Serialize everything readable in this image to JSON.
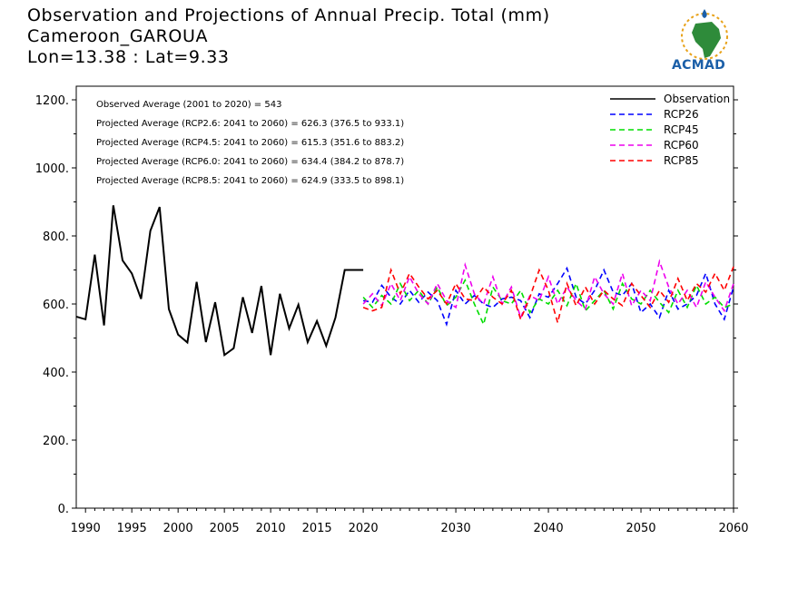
{
  "title": {
    "line1": "Observation and Projections of Annual Precip. Total (mm)",
    "line2": "Cameroon_GAROUA",
    "line3": "Lon=13.38 : Lat=9.33"
  },
  "logo": {
    "text": "ACMAD"
  },
  "colors": {
    "Observation": "#000000",
    "RCP26": "#0000ff",
    "RCP45": "#00dd00",
    "RCP60": "#ee00ee",
    "RCP85": "#ff0000"
  },
  "chart_data": {
    "type": "line",
    "title": "Observation and Projections of Annual Precip. Total (mm)",
    "xlim": [
      1989,
      2060
    ],
    "ylim": [
      0,
      1240
    ],
    "x_ticks": [
      1990,
      1995,
      2000,
      2005,
      2010,
      2015,
      2020,
      2030,
      2040,
      2050,
      2060
    ],
    "x_tick_labels": [
      "1990",
      "1995",
      "2000",
      "2005",
      "2010",
      "2015",
      "2020",
      "2030",
      "2040",
      "2050",
      "2060"
    ],
    "y_ticks": [
      0,
      200,
      400,
      600,
      800,
      1000,
      1200
    ],
    "y_tick_labels": [
      "0.",
      "200.",
      "400.",
      "600.",
      "800.",
      "1000.",
      "1200."
    ],
    "legend_position": "top-right",
    "annotations": [
      "Observed Average (2001 to 2020) = 543",
      "Projected Average (RCP2.6: 2041 to 2060) =  626.3 (376.5 to 933.1)",
      "Projected Average (RCP4.5: 2041 to 2060) =  615.3 (351.6 to 883.2)",
      "Projected Average (RCP6.0: 2041 to 2060) =  634.4 (384.2 to 878.7)",
      "Projected Average (RCP8.5: 2041 to 2060) =  624.9 (333.5 to 898.1)"
    ],
    "series": [
      {
        "name": "Observation",
        "style": "solid",
        "x": [
          1989,
          1990,
          1991,
          1992,
          1993,
          1994,
          1995,
          1996,
          1997,
          1998,
          1999,
          2000,
          2001,
          2002,
          2003,
          2004,
          2005,
          2006,
          2007,
          2008,
          2009,
          2010,
          2011,
          2012,
          2013,
          2014,
          2015,
          2016,
          2017,
          2018,
          2019,
          2020
        ],
        "values": [
          563,
          555,
          745,
          537,
          890,
          728,
          690,
          615,
          815,
          885,
          585,
          510,
          487,
          665,
          488,
          605,
          450,
          470,
          620,
          515,
          653,
          450,
          630,
          528,
          598,
          488,
          550,
          477,
          560,
          700,
          700,
          700
        ]
      },
      {
        "name": "RCP26",
        "style": "dashed",
        "x": [
          2020,
          2021,
          2022,
          2023,
          2024,
          2025,
          2026,
          2027,
          2028,
          2029,
          2030,
          2031,
          2032,
          2033,
          2034,
          2035,
          2036,
          2037,
          2038,
          2039,
          2040,
          2041,
          2042,
          2043,
          2044,
          2045,
          2046,
          2047,
          2048,
          2049,
          2050,
          2051,
          2052,
          2053,
          2054,
          2055,
          2056,
          2057,
          2058,
          2059,
          2060
        ],
        "values": [
          610,
          605,
          655,
          620,
          600,
          640,
          605,
          635,
          610,
          540,
          640,
          600,
          625,
          600,
          590,
          615,
          620,
          610,
          560,
          630,
          620,
          660,
          705,
          620,
          600,
          640,
          700,
          635,
          625,
          660,
          575,
          600,
          560,
          640,
          585,
          600,
          625,
          690,
          600,
          555,
          650
        ]
      },
      {
        "name": "RCP45",
        "style": "dashed",
        "x": [
          2020,
          2021,
          2022,
          2023,
          2024,
          2025,
          2026,
          2027,
          2028,
          2029,
          2030,
          2031,
          2032,
          2033,
          2034,
          2035,
          2036,
          2037,
          2038,
          2039,
          2040,
          2041,
          2042,
          2043,
          2044,
          2045,
          2046,
          2047,
          2048,
          2049,
          2050,
          2051,
          2052,
          2053,
          2054,
          2055,
          2056,
          2057,
          2058,
          2059,
          2060
        ],
        "values": [
          620,
          590,
          625,
          600,
          660,
          610,
          640,
          600,
          650,
          595,
          620,
          670,
          600,
          540,
          650,
          610,
          600,
          640,
          575,
          615,
          600,
          640,
          595,
          660,
          580,
          610,
          640,
          585,
          660,
          615,
          600,
          640,
          605,
          575,
          640,
          590,
          655,
          600,
          620,
          590,
          600
        ]
      },
      {
        "name": "RCP60",
        "style": "dashed",
        "x": [
          2020,
          2021,
          2022,
          2023,
          2024,
          2025,
          2026,
          2027,
          2028,
          2029,
          2030,
          2031,
          2032,
          2033,
          2034,
          2035,
          2036,
          2037,
          2038,
          2039,
          2040,
          2041,
          2042,
          2043,
          2044,
          2045,
          2046,
          2047,
          2048,
          2049,
          2050,
          2051,
          2052,
          2053,
          2054,
          2055,
          2056,
          2057,
          2058,
          2059,
          2060
        ],
        "values": [
          600,
          630,
          595,
          660,
          610,
          680,
          630,
          600,
          660,
          610,
          590,
          715,
          630,
          600,
          680,
          600,
          650,
          560,
          625,
          610,
          680,
          600,
          650,
          610,
          585,
          680,
          630,
          600,
          690,
          595,
          640,
          610,
          725,
          650,
          600,
          640,
          590,
          665,
          620,
          580,
          660
        ]
      },
      {
        "name": "RCP85",
        "style": "dashed",
        "x": [
          2020,
          2021,
          2022,
          2023,
          2024,
          2025,
          2026,
          2027,
          2028,
          2029,
          2030,
          2031,
          2032,
          2033,
          2034,
          2035,
          2036,
          2037,
          2038,
          2039,
          2040,
          2041,
          2042,
          2043,
          2044,
          2045,
          2046,
          2047,
          2048,
          2049,
          2050,
          2051,
          2052,
          2053,
          2054,
          2055,
          2056,
          2057,
          2058,
          2059,
          2060
        ],
        "values": [
          590,
          580,
          590,
          700,
          630,
          690,
          650,
          615,
          640,
          600,
          660,
          615,
          610,
          650,
          620,
          600,
          640,
          555,
          620,
          700,
          640,
          545,
          660,
          595,
          650,
          600,
          640,
          615,
          595,
          660,
          625,
          590,
          640,
          605,
          675,
          610,
          660,
          635,
          690,
          640,
          710
        ]
      }
    ]
  }
}
